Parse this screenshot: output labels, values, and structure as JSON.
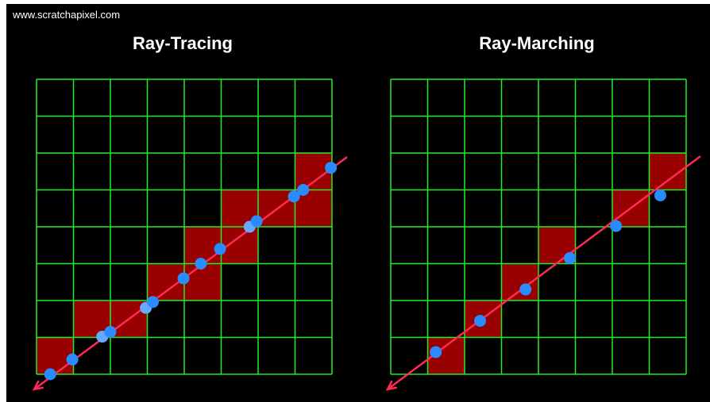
{
  "source_url": "www.scratchapixel.com",
  "panels": [
    {
      "title": "Ray-Tracing",
      "grid_rows": 8,
      "grid_cols": 8,
      "highlighted_cells": [
        [
          0,
          7
        ],
        [
          1,
          6
        ],
        [
          2,
          6
        ],
        [
          3,
          5
        ],
        [
          4,
          5
        ],
        [
          4,
          4
        ],
        [
          5,
          4
        ],
        [
          5,
          3
        ],
        [
          6,
          3
        ],
        [
          7,
          3
        ],
        [
          7,
          2
        ]
      ],
      "intersection_points": [
        {
          "gx": 0.37,
          "gy": 8.0,
          "style": "normal"
        },
        {
          "gx": 0.97,
          "gy": 7.6,
          "style": "normal"
        },
        {
          "gx": 1.78,
          "gy": 6.98,
          "style": "light"
        },
        {
          "gx": 2.0,
          "gy": 6.85,
          "style": "normal"
        },
        {
          "gx": 2.96,
          "gy": 6.2,
          "style": "light"
        },
        {
          "gx": 3.15,
          "gy": 6.04,
          "style": "normal"
        },
        {
          "gx": 3.98,
          "gy": 5.4,
          "style": "normal"
        },
        {
          "gx": 4.45,
          "gy": 5.0,
          "style": "normal"
        },
        {
          "gx": 4.97,
          "gy": 4.6,
          "style": "normal"
        },
        {
          "gx": 5.77,
          "gy": 4.0,
          "style": "light"
        },
        {
          "gx": 5.96,
          "gy": 3.85,
          "style": "normal"
        },
        {
          "gx": 6.97,
          "gy": 3.18,
          "style": "normal"
        },
        {
          "gx": 7.22,
          "gy": 3.0,
          "style": "normal"
        },
        {
          "gx": 7.97,
          "gy": 2.4,
          "style": "normal"
        }
      ]
    },
    {
      "title": "Ray-Marching",
      "grid_rows": 8,
      "grid_cols": 8,
      "highlighted_cells": [
        [
          1,
          7
        ],
        [
          2,
          6
        ],
        [
          3,
          5
        ],
        [
          4,
          4
        ],
        [
          6,
          3
        ],
        [
          7,
          2
        ]
      ],
      "intersection_points": [
        {
          "gx": 1.22,
          "gy": 7.4,
          "style": "normal"
        },
        {
          "gx": 2.42,
          "gy": 6.55,
          "style": "normal"
        },
        {
          "gx": 3.65,
          "gy": 5.7,
          "style": "normal"
        },
        {
          "gx": 4.85,
          "gy": 4.85,
          "style": "normal"
        },
        {
          "gx": 6.1,
          "gy": 3.98,
          "style": "normal"
        },
        {
          "gx": 7.3,
          "gy": 3.15,
          "style": "normal"
        }
      ]
    }
  ],
  "colors": {
    "background": "#000000",
    "grid": "#22ee22",
    "cell_fill": "#990000",
    "ray": "#ff2a55",
    "point": "#2a8bff",
    "point_light": "#66aaff",
    "text": "#ffffff"
  }
}
